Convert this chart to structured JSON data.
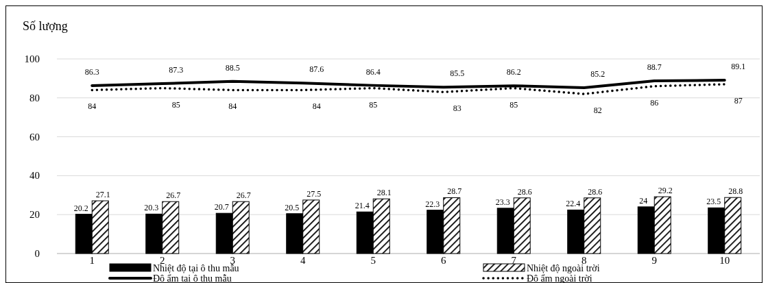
{
  "chart_data": {
    "type": "bar",
    "ylabel": "Số lượng",
    "categories": [
      "1",
      "2",
      "3",
      "4",
      "5",
      "6",
      "7",
      "8",
      "9",
      "10"
    ],
    "series": [
      {
        "name": "Nhiệt độ tại ô thu mẫu",
        "color": "#000000",
        "values": [
          20.2,
          20.3,
          20.7,
          20.5,
          21.4,
          22.3,
          23.3,
          22.4,
          24,
          23.5
        ]
      },
      {
        "name": "Nhiệt độ ngoài trời",
        "color": "#000000",
        "values": [
          27.1,
          26.7,
          26.7,
          27.5,
          28.1,
          28.7,
          28.6,
          28.6,
          29.2,
          28.8
        ]
      },
      {
        "name": "Độ ẩm tại ô thu mẫu",
        "type": "line",
        "color": "#000000",
        "line_style": "solid",
        "values": [
          86.3,
          87.3,
          88.5,
          87.6,
          86.4,
          85.5,
          86.2,
          85.2,
          88.7,
          89.1
        ]
      },
      {
        "name": "Độ ẩm ngoài trời",
        "type": "line",
        "color": "#000000",
        "line_style": "dotted",
        "values": [
          84,
          85,
          84,
          84,
          85,
          83,
          85,
          82,
          86,
          87
        ]
      }
    ],
    "ylim": [
      0,
      100
    ],
    "yticks": [
      0,
      20,
      40,
      60,
      80,
      100
    ],
    "grid": "y",
    "data_labels": true,
    "legend": "bottom",
    "marker": "none"
  }
}
